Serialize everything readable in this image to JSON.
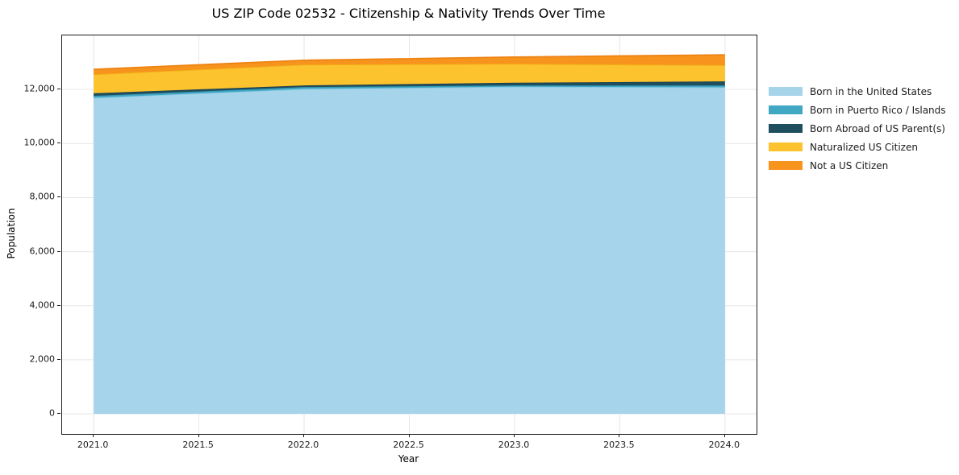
{
  "title": "US ZIP Code 02532 - Citizenship & Nativity Trends Over Time",
  "chart_data": {
    "type": "area",
    "stacked": true,
    "title": "US ZIP Code 02532 - Citizenship & Nativity Trends Over Time",
    "xlabel": "Year",
    "ylabel": "Population",
    "x": [
      2021,
      2022,
      2023,
      2024
    ],
    "series": [
      {
        "name": "Born in the United States",
        "color": "#a6d4eb",
        "edge": "#8ccae4",
        "values": [
          11690,
          12020,
          12100,
          12080
        ]
      },
      {
        "name": "Born in Puerto Rico / Islands",
        "color": "#41a8c4",
        "edge": "#3697b2",
        "values": [
          75,
          70,
          50,
          70
        ]
      },
      {
        "name": "Born Abroad of US Parent(s)",
        "color": "#1f4e5f",
        "edge": "#1a4251",
        "values": [
          95,
          60,
          100,
          150
        ]
      },
      {
        "name": "Naturalized US Citizen",
        "color": "#fcc32f",
        "edge": "#f2ae17",
        "values": [
          700,
          770,
          700,
          600
        ]
      },
      {
        "name": "Not a US Citizen",
        "color": "#f7941e",
        "edge": "#ee8312",
        "values": [
          185,
          160,
          250,
          380
        ]
      }
    ],
    "xticks": {
      "values": [
        2021.0,
        2021.5,
        2022.0,
        2022.5,
        2023.0,
        2023.5,
        2024.0
      ],
      "labels": [
        "2021.0",
        "2021.5",
        "2022.0",
        "2022.5",
        "2023.0",
        "2023.5",
        "2024.0"
      ]
    },
    "yticks": {
      "values": [
        0,
        2000,
        4000,
        6000,
        8000,
        10000,
        12000
      ],
      "labels": [
        "0",
        "2,000",
        "4,000",
        "6,000",
        "8,000",
        "10,000",
        "12,000"
      ]
    },
    "xlim": [
      2020.85,
      2024.15
    ],
    "ylim": [
      -744,
      14000
    ],
    "grid": true,
    "legend_position": "right"
  },
  "colors": {
    "grid": "#e7e7e7",
    "spine": "#1c1c1c",
    "tick_text": "#1a1a1a",
    "title_text": "#000000",
    "background": "#ffffff"
  }
}
